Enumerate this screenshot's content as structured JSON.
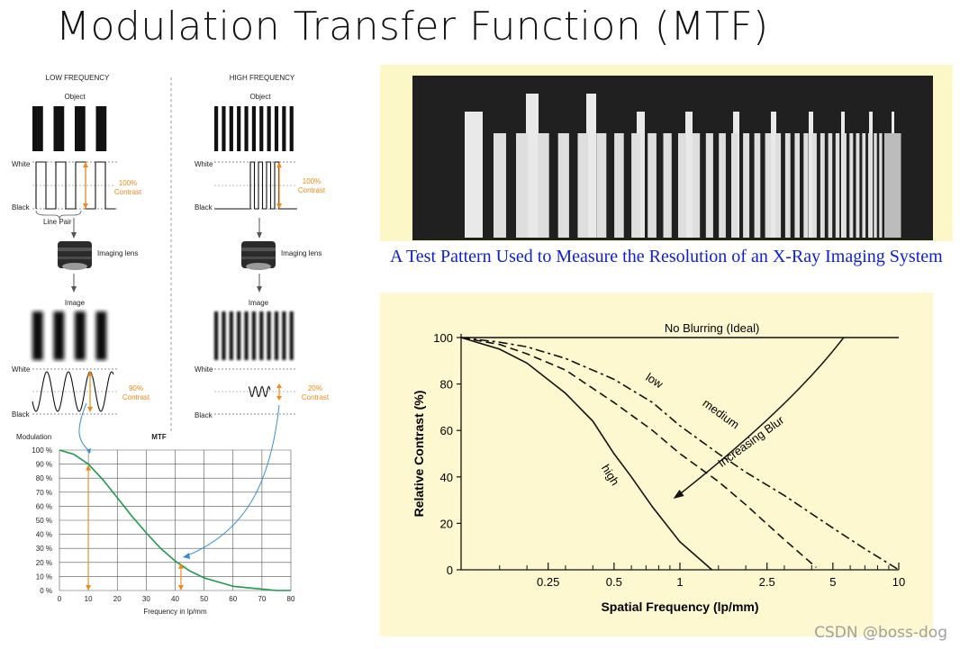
{
  "slide": {
    "title": "Modulation Transfer Function (MTF)",
    "caption": "A Test Pattern Used to Measure the Resolution of an X-Ray Imaging System",
    "watermark": "CSDN @boss-dog"
  },
  "left_diagram": {
    "low_title": "LOW FREQUENCY",
    "high_title": "HIGH FREQUENCY",
    "object_label": "Object",
    "image_label": "Image",
    "white_label": "White",
    "black_label": "Black",
    "line_pair_label": "Line Pair",
    "imaging_lens_label": "Imaging lens",
    "contrast_word": "Contrast",
    "low_object_contrast": "100%",
    "high_object_contrast": "100%",
    "low_image_contrast": "90%",
    "high_image_contrast": "20%",
    "low_bar_count": 4,
    "high_bar_count": 11,
    "colors": {
      "accent": "#ee8a1a",
      "curve": "#1e9a4a",
      "pointer": "#3a8ed0"
    }
  },
  "chart_data": [
    {
      "type": "line",
      "title": "MTF",
      "ylabel": "Modulation",
      "xlabel": "Frequency in lp/mm",
      "xlim": [
        0,
        80
      ],
      "ylim": [
        0,
        100
      ],
      "x_ticks": [
        0,
        10,
        20,
        30,
        40,
        50,
        60,
        70,
        80
      ],
      "y_ticks": [
        0,
        10,
        20,
        30,
        40,
        50,
        60,
        70,
        80,
        90,
        100
      ],
      "y_tick_labels": [
        "0 %",
        "10 %",
        "20 %",
        "30 %",
        "40 %",
        "50 %",
        "60 %",
        "70 %",
        "80 %",
        "90 %",
        "100 %"
      ],
      "grid": true,
      "series": [
        {
          "x": [
            0,
            5,
            10,
            15,
            20,
            25,
            30,
            35,
            40,
            45,
            50,
            55,
            60,
            65,
            70,
            75,
            80
          ],
          "y": [
            100,
            97,
            90,
            79,
            66,
            53,
            41,
            30,
            21,
            14,
            9,
            6,
            3,
            2,
            1,
            0,
            0
          ]
        }
      ],
      "markers": [
        {
          "x": 10,
          "y": 90
        },
        {
          "x": 42,
          "y": 20
        }
      ]
    },
    {
      "type": "line",
      "title": "",
      "xlabel": "Spatial Frequency (lp/mm)",
      "ylabel": "Relative Contrast (%)",
      "x_scale": "log",
      "xlim": [
        0.1,
        10
      ],
      "ylim": [
        0,
        100
      ],
      "x_tick_labels": [
        "0.25",
        "0.5",
        "1",
        "2.5",
        "5",
        "10"
      ],
      "x_tick_values": [
        0.25,
        0.5,
        1,
        2.5,
        5,
        10
      ],
      "y_ticks": [
        0,
        20,
        40,
        60,
        80,
        100
      ],
      "grid": false,
      "series": [
        {
          "name": "No Blurring (Ideal)",
          "style": "solid",
          "x": [
            0.1,
            0.2,
            0.5,
            1,
            2,
            5,
            10
          ],
          "y": [
            100,
            100,
            100,
            100,
            100,
            100,
            100
          ]
        },
        {
          "name": "low",
          "style": "dash-dot",
          "x": [
            0.1,
            0.15,
            0.2,
            0.3,
            0.5,
            0.75,
            1,
            1.5,
            2,
            3,
            5,
            7,
            10
          ],
          "y": [
            100,
            98,
            96,
            91,
            82,
            72,
            62,
            50,
            42,
            32,
            18,
            9,
            0
          ]
        },
        {
          "name": "medium",
          "style": "dashed",
          "x": [
            0.1,
            0.15,
            0.2,
            0.3,
            0.5,
            0.75,
            1,
            1.5,
            2,
            3,
            4.2
          ],
          "y": [
            100,
            97,
            93,
            86,
            72,
            60,
            50,
            38,
            28,
            13,
            1
          ]
        },
        {
          "name": "high",
          "style": "solid",
          "x": [
            0.1,
            0.15,
            0.2,
            0.3,
            0.4,
            0.5,
            0.6,
            0.75,
            1,
            1.4
          ],
          "y": [
            100,
            95,
            89,
            76,
            64,
            50,
            40,
            27,
            12,
            0
          ]
        }
      ],
      "annotations": [
        {
          "text": "No Blurring (Ideal)"
        },
        {
          "text": "Increasing Blur"
        }
      ]
    }
  ]
}
